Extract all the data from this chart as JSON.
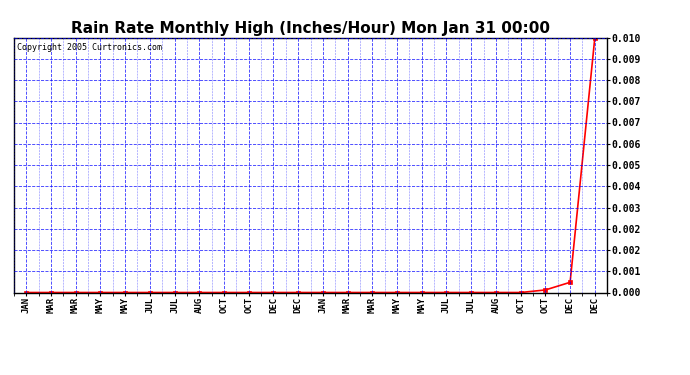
{
  "title": "Rain Rate Monthly High (Inches/Hour) Mon Jan 31 00:00",
  "copyright": "Copyright 2005 Curtronics.com",
  "x_labels": [
    "JAN",
    "MAR",
    "MAR",
    "MAY",
    "MAY",
    "JUL",
    "JUL",
    "AUG",
    "OCT",
    "OCT",
    "DEC",
    "DEC",
    "JAN",
    "MAR",
    "MAR",
    "MAY",
    "MAY",
    "JUL",
    "JUL",
    "AUG",
    "OCT",
    "OCT",
    "DEC",
    "DEC"
  ],
  "y_values": [
    0.0,
    0.0,
    0.0,
    0.0,
    0.0,
    0.0,
    0.0,
    0.0,
    0.0,
    0.0,
    0.0,
    0.0,
    0.0,
    0.0,
    0.0,
    0.0,
    0.0,
    0.0,
    0.0,
    0.0,
    0.0,
    0.0001,
    0.0004,
    0.01
  ],
  "line_color": "#ff0000",
  "marker_color": "#ff0000",
  "grid_color": "#0000ff",
  "background_color": "#ffffff",
  "title_fontsize": 11,
  "ylim": [
    0.0,
    0.01
  ],
  "ytick_values": [
    0.0,
    0.001,
    0.002,
    0.002,
    0.003,
    0.004,
    0.005,
    0.006,
    0.007,
    0.007,
    0.008,
    0.009,
    0.01
  ]
}
